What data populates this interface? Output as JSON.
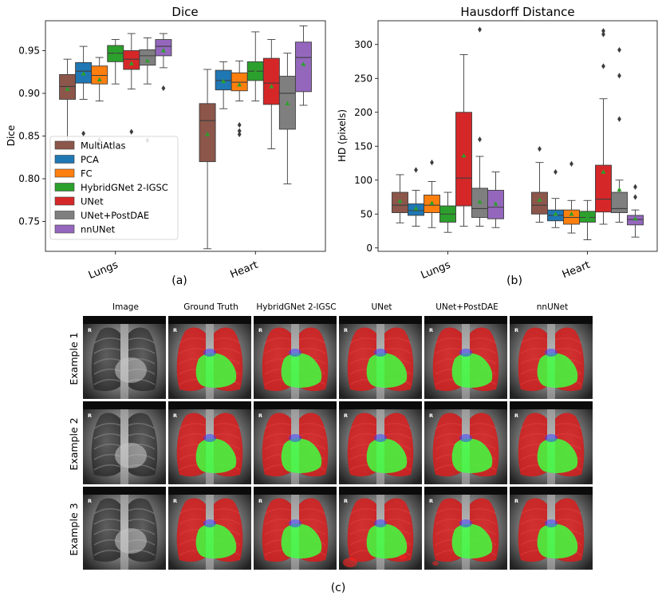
{
  "colors": {
    "MultiAtlas": "#8c564b",
    "PCA": "#1f77b4",
    "FC": "#ff7f0e",
    "HybridGNet 2-IGSC": "#2ca02c",
    "UNet": "#d62728",
    "UNet+PostDAE": "#7f7f7f",
    "nnUNet": "#9467bd",
    "mean_marker": "#2ca02c",
    "lung_mask": "#ff2020",
    "heart_mask": "#40ff40"
  },
  "chart_data": [
    {
      "type": "box",
      "panel_label": "(a)",
      "title": "Dice",
      "ylabel": "Dice",
      "ylim": [
        0.715,
        0.985
      ],
      "yticks": [
        0.75,
        0.8,
        0.85,
        0.9,
        0.95
      ],
      "ytick_labels": [
        "0.75",
        "0.80",
        "0.85",
        "0.90",
        "0.95"
      ],
      "categories": [
        "Lungs",
        "Heart"
      ],
      "legend": [
        "MultiAtlas",
        "PCA",
        "FC",
        "HybridGNet 2-IGSC",
        "UNet",
        "UNet+PostDAE",
        "nnUNet"
      ],
      "legend_position": "lower-left",
      "series": [
        {
          "name": "MultiAtlas",
          "boxes": [
            {
              "q1": 0.893,
              "median": 0.908,
              "q3": 0.922,
              "wlo": 0.845,
              "whi": 0.94,
              "mean": 0.905,
              "outliers": []
            },
            {
              "q1": 0.82,
              "median": 0.868,
              "q3": 0.888,
              "wlo": 0.718,
              "whi": 0.928,
              "mean": 0.852,
              "outliers": []
            }
          ]
        },
        {
          "name": "PCA",
          "boxes": [
            {
              "q1": 0.912,
              "median": 0.926,
              "q3": 0.936,
              "wlo": 0.893,
              "whi": 0.955,
              "mean": 0.923,
              "outliers": [
                0.853
              ]
            },
            {
              "q1": 0.904,
              "median": 0.915,
              "q3": 0.927,
              "wlo": 0.882,
              "whi": 0.937,
              "mean": 0.914,
              "outliers": []
            }
          ]
        },
        {
          "name": "FC",
          "boxes": [
            {
              "q1": 0.911,
              "median": 0.921,
              "q3": 0.932,
              "wlo": 0.891,
              "whi": 0.942,
              "mean": 0.916,
              "outliers": [
                0.845
              ]
            },
            {
              "q1": 0.903,
              "median": 0.913,
              "q3": 0.924,
              "wlo": 0.891,
              "whi": 0.938,
              "mean": 0.91,
              "outliers": [
                0.863,
                0.856,
                0.852
              ]
            }
          ]
        },
        {
          "name": "HybridGNet 2-IGSC",
          "boxes": [
            {
              "q1": 0.937,
              "median": 0.947,
              "q3": 0.956,
              "wlo": 0.911,
              "whi": 0.963,
              "mean": 0.945,
              "outliers": []
            },
            {
              "q1": 0.915,
              "median": 0.926,
              "q3": 0.937,
              "wlo": 0.891,
              "whi": 0.972,
              "mean": 0.925,
              "outliers": []
            }
          ]
        },
        {
          "name": "UNet",
          "boxes": [
            {
              "q1": 0.928,
              "median": 0.94,
              "q3": 0.95,
              "wlo": 0.905,
              "whi": 0.97,
              "mean": 0.935,
              "outliers": [
                0.855
              ]
            },
            {
              "q1": 0.887,
              "median": 0.912,
              "q3": 0.941,
              "wlo": 0.835,
              "whi": 0.963,
              "mean": 0.908,
              "outliers": []
            }
          ]
        },
        {
          "name": "UNet+PostDAE",
          "boxes": [
            {
              "q1": 0.933,
              "median": 0.944,
              "q3": 0.951,
              "wlo": 0.911,
              "whi": 0.965,
              "mean": 0.938,
              "outliers": [
                0.845
              ]
            },
            {
              "q1": 0.858,
              "median": 0.9,
              "q3": 0.92,
              "wlo": 0.794,
              "whi": 0.947,
              "mean": 0.888,
              "outliers": []
            }
          ]
        },
        {
          "name": "nnUNet",
          "boxes": [
            {
              "q1": 0.944,
              "median": 0.955,
              "q3": 0.963,
              "wlo": 0.93,
              "whi": 0.97,
              "mean": 0.95,
              "outliers": [
                0.906
              ]
            },
            {
              "q1": 0.902,
              "median": 0.942,
              "q3": 0.96,
              "wlo": 0.886,
              "whi": 0.979,
              "mean": 0.934,
              "outliers": []
            }
          ]
        }
      ]
    },
    {
      "type": "box",
      "panel_label": "(b)",
      "title": "Hausdorff Distance",
      "ylabel": "HD (pixels)",
      "ylim": [
        -5,
        335
      ],
      "yticks": [
        0,
        50,
        100,
        150,
        200,
        250,
        300
      ],
      "ytick_labels": [
        "0",
        "50",
        "100",
        "150",
        "200",
        "250",
        "300"
      ],
      "categories": [
        "Lungs",
        "Heart"
      ],
      "series": [
        {
          "name": "MultiAtlas",
          "boxes": [
            {
              "q1": 52,
              "median": 63,
              "q3": 82,
              "wlo": 37,
              "whi": 108,
              "mean": 69,
              "outliers": []
            },
            {
              "q1": 50,
              "median": 63,
              "q3": 82,
              "wlo": 38,
              "whi": 126,
              "mean": 71,
              "outliers": [
                146
              ]
            }
          ]
        },
        {
          "name": "PCA",
          "boxes": [
            {
              "q1": 48,
              "median": 55,
              "q3": 65,
              "wlo": 32,
              "whi": 85,
              "mean": 58,
              "outliers": [
                115
              ]
            },
            {
              "q1": 40,
              "median": 48,
              "q3": 56,
              "wlo": 30,
              "whi": 73,
              "mean": 50,
              "outliers": [
                112
              ]
            }
          ]
        },
        {
          "name": "FC",
          "boxes": [
            {
              "q1": 52,
              "median": 63,
              "q3": 78,
              "wlo": 30,
              "whi": 98,
              "mean": 66,
              "outliers": [
                126
              ]
            },
            {
              "q1": 35,
              "median": 45,
              "q3": 56,
              "wlo": 22,
              "whi": 70,
              "mean": 50,
              "outliers": [
                124
              ]
            }
          ]
        },
        {
          "name": "HybridGNet 2-IGSC",
          "boxes": [
            {
              "q1": 38,
              "median": 50,
              "q3": 62,
              "wlo": 23,
              "whi": 82,
              "mean": 54,
              "outliers": []
            },
            {
              "q1": 38,
              "median": 45,
              "q3": 54,
              "wlo": 12,
              "whi": 70,
              "mean": 46,
              "outliers": []
            }
          ]
        },
        {
          "name": "UNet",
          "boxes": [
            {
              "q1": 62,
              "median": 103,
              "q3": 200,
              "wlo": 32,
              "whi": 285,
              "mean": 136,
              "outliers": []
            },
            {
              "q1": 53,
              "median": 72,
              "q3": 122,
              "wlo": 35,
              "whi": 220,
              "mean": 112,
              "outliers": [
                320,
                315,
                268
              ]
            }
          ]
        },
        {
          "name": "UNet+PostDAE",
          "boxes": [
            {
              "q1": 45,
              "median": 58,
              "q3": 88,
              "wlo": 32,
              "whi": 135,
              "mean": 68,
              "outliers": [
                322,
                160
              ]
            },
            {
              "q1": 52,
              "median": 58,
              "q3": 82,
              "wlo": 38,
              "whi": 100,
              "mean": 86,
              "outliers": [
                292,
                254,
                190
              ]
            }
          ]
        },
        {
          "name": "nnUNet",
          "boxes": [
            {
              "q1": 43,
              "median": 60,
              "q3": 85,
              "wlo": 30,
              "whi": 112,
              "mean": 65,
              "outliers": []
            },
            {
              "q1": 34,
              "median": 42,
              "q3": 48,
              "wlo": 16,
              "whi": 56,
              "mean": 43,
              "outliers": [
                90,
                75
              ]
            }
          ]
        }
      ]
    }
  ],
  "grid": {
    "panel_label": "(c)",
    "columns": [
      "Image",
      "Ground Truth",
      "HybridGNet 2-IGSC",
      "UNet",
      "UNet+PostDAE",
      "nnUNet"
    ],
    "rows": [
      "Example 1",
      "Example 2",
      "Example 3"
    ],
    "marker_text": "R"
  }
}
